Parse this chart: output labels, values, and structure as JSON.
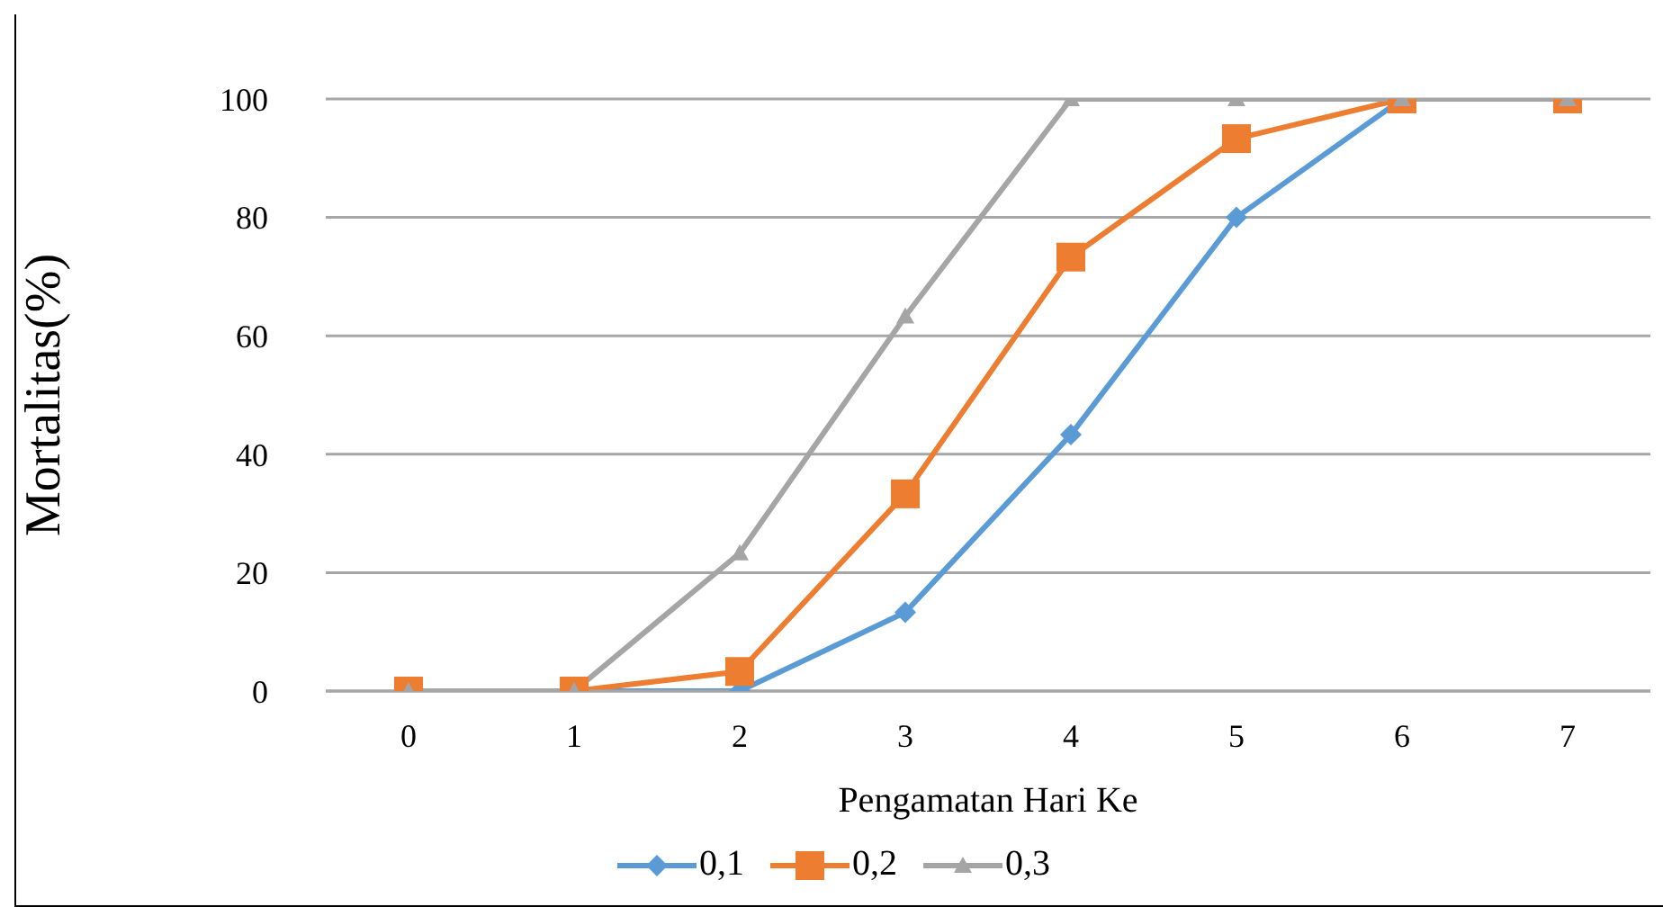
{
  "chart_data": {
    "type": "line",
    "xlabel": "Pengamatan Hari Ke",
    "ylabel": "Mortalitas(%)",
    "categories": [
      "0",
      "1",
      "2",
      "3",
      "4",
      "5",
      "6",
      "7"
    ],
    "series": [
      {
        "name": "0,1",
        "color": "#5b9bd5",
        "marker": "diamond",
        "values": [
          0,
          0,
          0,
          13.3,
          43.3,
          80,
          100,
          100
        ]
      },
      {
        "name": "0,2",
        "color": "#ed7d31",
        "marker": "square",
        "values": [
          0,
          0,
          3.3,
          33.3,
          73.3,
          93.3,
          100,
          100
        ]
      },
      {
        "name": "0,3",
        "color": "#a5a5a5",
        "marker": "triangle",
        "values": [
          0,
          0,
          23.3,
          63.3,
          100,
          100,
          100,
          100
        ]
      }
    ],
    "ylim": [
      0,
      100
    ],
    "yticks": [
      0,
      20,
      40,
      60,
      80,
      100
    ],
    "grid": "y",
    "legend": "bottom"
  }
}
